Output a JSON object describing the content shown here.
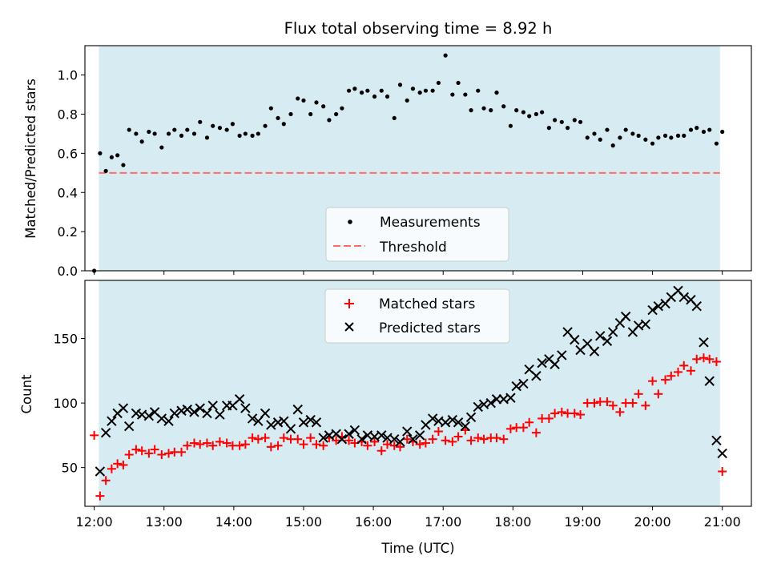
{
  "chart_data": [
    {
      "type": "scatter",
      "title": "Flux total observing time = 8.92 h",
      "xlabel": "",
      "ylabel": "Matched/Predicted stars",
      "xlim": [
        "11:52",
        "21:25"
      ],
      "ylim": [
        0,
        1.15
      ],
      "yticks": [
        "0.0",
        "0.2",
        "0.4",
        "0.6",
        "0.8",
        "1.0"
      ],
      "shaded_span": [
        "12:04",
        "20:58"
      ],
      "shade_color": "#add8e6",
      "legend_position": "lower center",
      "series": [
        {
          "name": "Measurements",
          "marker": "dot",
          "color": "#000000",
          "x": [
            "12:00",
            "12:05",
            "12:10",
            "12:15",
            "12:20",
            "12:25",
            "12:30",
            "12:36",
            "12:41",
            "12:47",
            "12:52",
            "12:58",
            "13:04",
            "13:09",
            "13:15",
            "13:20",
            "13:26",
            "13:31",
            "13:37",
            "13:42",
            "13:48",
            "13:54",
            "13:59",
            "14:05",
            "14:10",
            "14:16",
            "14:21",
            "14:27",
            "14:32",
            "14:38",
            "14:43",
            "14:49",
            "14:55",
            "15:00",
            "15:06",
            "15:11",
            "15:17",
            "15:22",
            "15:28",
            "15:33",
            "15:39",
            "15:44",
            "15:50",
            "15:55",
            "16:01",
            "16:07",
            "16:12",
            "16:18",
            "16:23",
            "16:29",
            "16:34",
            "16:40",
            "16:45",
            "16:51",
            "16:56",
            "17:02",
            "17:08",
            "17:13",
            "17:19",
            "17:24",
            "17:30",
            "17:35",
            "17:41",
            "17:46",
            "17:52",
            "17:58",
            "18:03",
            "18:09",
            "18:14",
            "18:20",
            "18:25",
            "18:31",
            "18:36",
            "18:42",
            "18:47",
            "18:53",
            "18:58",
            "19:04",
            "19:10",
            "19:15",
            "19:21",
            "19:26",
            "19:32",
            "19:37",
            "19:43",
            "19:48",
            "19:54",
            "20:00",
            "20:05",
            "20:11",
            "20:16",
            "20:22",
            "20:27",
            "20:33",
            "20:38",
            "20:44",
            "20:49",
            "20:55",
            "21:00"
          ],
          "y": [
            0.0,
            0.6,
            0.51,
            0.58,
            0.59,
            0.54,
            0.72,
            0.7,
            0.66,
            0.71,
            0.7,
            0.63,
            0.7,
            0.72,
            0.69,
            0.72,
            0.7,
            0.76,
            0.68,
            0.74,
            0.73,
            0.72,
            0.75,
            0.69,
            0.7,
            0.69,
            0.7,
            0.74,
            0.83,
            0.78,
            0.75,
            0.8,
            0.88,
            0.87,
            0.8,
            0.86,
            0.84,
            0.77,
            0.8,
            0.83,
            0.92,
            0.93,
            0.91,
            0.92,
            0.89,
            0.92,
            0.89,
            0.78,
            0.95,
            0.87,
            0.93,
            0.91,
            0.92,
            0.92,
            0.96,
            1.1,
            0.9,
            0.96,
            0.9,
            0.82,
            0.92,
            0.83,
            0.82,
            0.91,
            0.84,
            0.74,
            0.82,
            0.81,
            0.79,
            0.8,
            0.81,
            0.73,
            0.77,
            0.76,
            0.73,
            0.77,
            0.76,
            0.68,
            0.7,
            0.67,
            0.72,
            0.64,
            0.68,
            0.72,
            0.7,
            0.69,
            0.67,
            0.65,
            0.68,
            0.69,
            0.68,
            0.69,
            0.69,
            0.72,
            0.73,
            0.71,
            0.72,
            0.65,
            0.71
          ]
        },
        {
          "name": "Threshold",
          "style": "dashed",
          "color": "#ff6b6b",
          "x": [
            "12:04",
            "20:58"
          ],
          "y": [
            0.5,
            0.5
          ]
        }
      ]
    },
    {
      "type": "scatter",
      "title": "",
      "xlabel": "Time (UTC)",
      "ylabel": "Count",
      "xlim": [
        "11:52",
        "21:25"
      ],
      "ylim": [
        20,
        195
      ],
      "yticks": [
        "50",
        "100",
        "150"
      ],
      "xticks": [
        "12:00",
        "13:00",
        "14:00",
        "15:00",
        "16:00",
        "17:00",
        "18:00",
        "19:00",
        "20:00",
        "21:00"
      ],
      "shaded_span": [
        "12:04",
        "20:58"
      ],
      "shade_color": "#add8e6",
      "legend_position": "upper center",
      "series": [
        {
          "name": "Matched stars",
          "marker": "plus",
          "color": "#ff0000",
          "x": [
            "12:00",
            "12:05",
            "12:10",
            "12:15",
            "12:20",
            "12:25",
            "12:30",
            "12:36",
            "12:41",
            "12:47",
            "12:52",
            "12:58",
            "13:04",
            "13:09",
            "13:15",
            "13:20",
            "13:26",
            "13:31",
            "13:37",
            "13:42",
            "13:48",
            "13:54",
            "13:59",
            "14:05",
            "14:10",
            "14:16",
            "14:21",
            "14:27",
            "14:32",
            "14:38",
            "14:43",
            "14:49",
            "14:55",
            "15:00",
            "15:06",
            "15:11",
            "15:17",
            "15:22",
            "15:28",
            "15:33",
            "15:39",
            "15:44",
            "15:50",
            "15:55",
            "16:01",
            "16:07",
            "16:12",
            "16:18",
            "16:23",
            "16:29",
            "16:34",
            "16:40",
            "16:45",
            "16:51",
            "16:56",
            "17:02",
            "17:08",
            "17:13",
            "17:19",
            "17:24",
            "17:30",
            "17:35",
            "17:41",
            "17:46",
            "17:52",
            "17:58",
            "18:03",
            "18:09",
            "18:14",
            "18:20",
            "18:25",
            "18:31",
            "18:36",
            "18:42",
            "18:47",
            "18:53",
            "18:58",
            "19:04",
            "19:10",
            "19:15",
            "19:21",
            "19:26",
            "19:32",
            "19:37",
            "19:43",
            "19:48",
            "19:54",
            "20:00",
            "20:05",
            "20:11",
            "20:16",
            "20:22",
            "20:27",
            "20:33",
            "20:38",
            "20:44",
            "20:49",
            "20:55",
            "21:00"
          ],
          "y": [
            75,
            28,
            40,
            49,
            53,
            52,
            60,
            64,
            63,
            61,
            64,
            60,
            61,
            62,
            62,
            67,
            69,
            68,
            69,
            67,
            70,
            69,
            67,
            67,
            68,
            73,
            72,
            73,
            66,
            67,
            73,
            72,
            72,
            68,
            73,
            68,
            67,
            73,
            71,
            74,
            71,
            69,
            70,
            67,
            70,
            63,
            68,
            67,
            66,
            72,
            70,
            68,
            69,
            72,
            78,
            71,
            70,
            74,
            79,
            71,
            73,
            72,
            73,
            73,
            72,
            80,
            81,
            81,
            85,
            77,
            88,
            88,
            92,
            93,
            92,
            92,
            91,
            100,
            100,
            101,
            101,
            98,
            93,
            100,
            100,
            107,
            98,
            117,
            107,
            118,
            121,
            124,
            129,
            125,
            134,
            135,
            134,
            132,
            47
          ]
        },
        {
          "name": "Predicted stars",
          "marker": "x",
          "color": "#000000",
          "x": [
            "12:05",
            "12:10",
            "12:15",
            "12:20",
            "12:25",
            "12:30",
            "12:36",
            "12:41",
            "12:47",
            "12:52",
            "12:58",
            "13:04",
            "13:09",
            "13:15",
            "13:20",
            "13:26",
            "13:31",
            "13:37",
            "13:42",
            "13:48",
            "13:54",
            "13:59",
            "14:05",
            "14:10",
            "14:16",
            "14:21",
            "14:27",
            "14:32",
            "14:38",
            "14:43",
            "14:49",
            "14:55",
            "15:00",
            "15:06",
            "15:11",
            "15:17",
            "15:22",
            "15:28",
            "15:33",
            "15:39",
            "15:44",
            "15:50",
            "15:55",
            "16:01",
            "16:07",
            "16:12",
            "16:18",
            "16:23",
            "16:29",
            "16:34",
            "16:40",
            "16:45",
            "16:51",
            "16:56",
            "17:02",
            "17:08",
            "17:13",
            "17:19",
            "17:24",
            "17:30",
            "17:35",
            "17:41",
            "17:46",
            "17:52",
            "17:58",
            "18:03",
            "18:09",
            "18:14",
            "18:20",
            "18:25",
            "18:31",
            "18:36",
            "18:42",
            "18:47",
            "18:53",
            "18:58",
            "19:04",
            "19:10",
            "19:15",
            "19:21",
            "19:26",
            "19:32",
            "19:37",
            "19:43",
            "19:48",
            "19:54",
            "20:00",
            "20:05",
            "20:11",
            "20:16",
            "20:22",
            "20:27",
            "20:33",
            "20:38",
            "20:44",
            "20:49",
            "20:55",
            "21:00"
          ],
          "y": [
            47,
            77,
            86,
            92,
            96,
            82,
            92,
            91,
            90,
            93,
            88,
            86,
            92,
            94,
            95,
            93,
            96,
            92,
            98,
            91,
            98,
            98,
            103,
            96,
            88,
            86,
            92,
            83,
            85,
            86,
            80,
            95,
            85,
            87,
            85,
            73,
            75,
            76,
            72,
            76,
            79,
            72,
            75,
            74,
            75,
            73,
            72,
            70,
            78,
            72,
            75,
            83,
            88,
            86,
            85,
            87,
            85,
            82,
            89,
            97,
            99,
            100,
            103,
            103,
            104,
            113,
            115,
            126,
            121,
            131,
            134,
            130,
            137,
            155,
            149,
            141,
            146,
            140,
            152,
            148,
            155,
            162,
            167,
            155,
            160,
            161,
            172,
            175,
            177,
            182,
            187,
            182,
            180,
            175,
            147,
            117,
            71,
            61
          ]
        }
      ]
    }
  ]
}
